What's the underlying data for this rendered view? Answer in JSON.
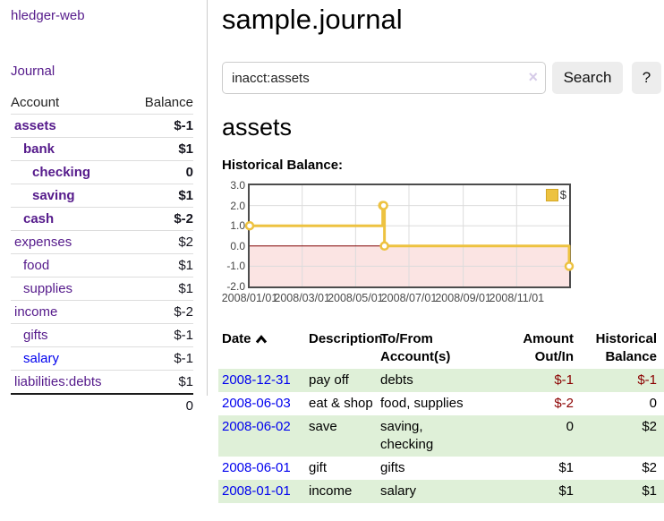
{
  "app": {
    "title": "hledger-web",
    "nav_journal": "Journal"
  },
  "colors": {
    "visited_link_purple": "#551a8b",
    "link_blue": "#0000ee",
    "negative": "#8b0000",
    "negative_faint": "#c08a8a",
    "row_stripe_green": "#dff0d8",
    "chart_line": "#edc240",
    "chart_negative_fill": "#fbe4e3",
    "chart_zero_line": "#800000",
    "grid_line": "#dcdcdc"
  },
  "sidebar": {
    "header": {
      "account": "Account",
      "balance": "Balance"
    },
    "accounts": [
      {
        "name": "assets",
        "level": 0,
        "bold": true,
        "link": "visited",
        "balance": "$-1",
        "balance_style": "negative"
      },
      {
        "name": "bank",
        "level": 1,
        "bold": true,
        "link": "visited",
        "balance": "$1",
        "balance_style": "positive"
      },
      {
        "name": "checking",
        "level": 2,
        "bold": true,
        "link": "visited",
        "balance": "0",
        "balance_style": "positive"
      },
      {
        "name": "saving",
        "level": 2,
        "bold": true,
        "link": "visited",
        "balance": "$1",
        "balance_style": "positive"
      },
      {
        "name": "cash",
        "level": 1,
        "bold": true,
        "link": "visited",
        "balance": "$-2",
        "balance_style": "negative"
      },
      {
        "name": "expenses",
        "level": 0,
        "bold": false,
        "link": "visited",
        "balance": "$2",
        "balance_style": "positive"
      },
      {
        "name": "food",
        "level": 1,
        "bold": false,
        "link": "visited",
        "balance": "$1",
        "balance_style": "positive"
      },
      {
        "name": "supplies",
        "level": 1,
        "bold": false,
        "link": "visited",
        "balance": "$1",
        "balance_style": "positive"
      },
      {
        "name": "income",
        "level": 0,
        "bold": false,
        "link": "visited",
        "balance": "$-2",
        "balance_style": "negative-faint"
      },
      {
        "name": "gifts",
        "level": 1,
        "bold": false,
        "link": "visited",
        "balance": "$-1",
        "balance_style": "negative-faint"
      },
      {
        "name": "salary",
        "level": 1,
        "bold": false,
        "link": "new",
        "balance": "$-1",
        "balance_style": "negative-faint"
      },
      {
        "name": "liabilities:debts",
        "level": 0,
        "bold": false,
        "link": "visited",
        "balance": "$1",
        "balance_style": "positive"
      }
    ],
    "total": "0"
  },
  "main": {
    "title": "sample.journal",
    "search": {
      "value": "inacct:assets",
      "clear_icon": "×",
      "button_label": "Search",
      "help_label": "?"
    },
    "account_heading": "assets",
    "chart_label": "Historical Balance:"
  },
  "chart_data": {
    "type": "line",
    "step": true,
    "title": "Historical Balance:",
    "x_start": "2008-01-01",
    "x_end": "2008-12-31",
    "ylim": [
      -2,
      3
    ],
    "y_ticks": [
      "3.0",
      "2.0",
      "1.0",
      "0.0",
      "-1.0",
      "-2.0"
    ],
    "x_ticks": [
      {
        "label": "2008/01/01",
        "date": "2008-01-01"
      },
      {
        "label": "2008/03/01",
        "date": "2008-03-01"
      },
      {
        "label": "2008/05/01",
        "date": "2008-05-01"
      },
      {
        "label": "2008/07/01",
        "date": "2008-07-01"
      },
      {
        "label": "2008/09/01",
        "date": "2008-09-01"
      },
      {
        "label": "2008/11/01",
        "date": "2008-11-01"
      }
    ],
    "series": [
      {
        "name": "$",
        "color": "#edc240",
        "points": [
          [
            "2008-01-01",
            1
          ],
          [
            "2008-06-01",
            2
          ],
          [
            "2008-06-02",
            2
          ],
          [
            "2008-06-03",
            0
          ],
          [
            "2008-12-31",
            -1
          ]
        ]
      }
    ],
    "legend": {
      "label": "$",
      "position": "top-right"
    },
    "grid": true,
    "negative_region_fill": "#fbe4e3",
    "zero_line_color": "#800000"
  },
  "register": {
    "headers": {
      "date": "Date",
      "description": "Description",
      "accounts": "To/From Account(s)",
      "amount": "Amount Out/In",
      "balance": "Historical Balance"
    },
    "rows": [
      {
        "date": "2008-12-31",
        "description": "pay off",
        "accounts": "debts",
        "amount": "$-1",
        "amount_negative": true,
        "balance": "$-1",
        "balance_negative": true,
        "shaded": true
      },
      {
        "date": "2008-06-03",
        "description": "eat & shop",
        "accounts": "food, supplies",
        "amount": "$-2",
        "amount_negative": true,
        "balance": "0",
        "balance_negative": false,
        "shaded": false
      },
      {
        "date": "2008-06-02",
        "description": "save",
        "accounts": "saving, checking",
        "amount": "0",
        "amount_negative": false,
        "balance": "$2",
        "balance_negative": false,
        "shaded": true
      },
      {
        "date": "2008-06-01",
        "description": "gift",
        "accounts": "gifts",
        "amount": "$1",
        "amount_negative": false,
        "balance": "$2",
        "balance_negative": false,
        "shaded": false
      },
      {
        "date": "2008-01-01",
        "description": "income",
        "accounts": "salary",
        "amount": "$1",
        "amount_negative": false,
        "balance": "$1",
        "balance_negative": false,
        "shaded": true
      }
    ]
  }
}
